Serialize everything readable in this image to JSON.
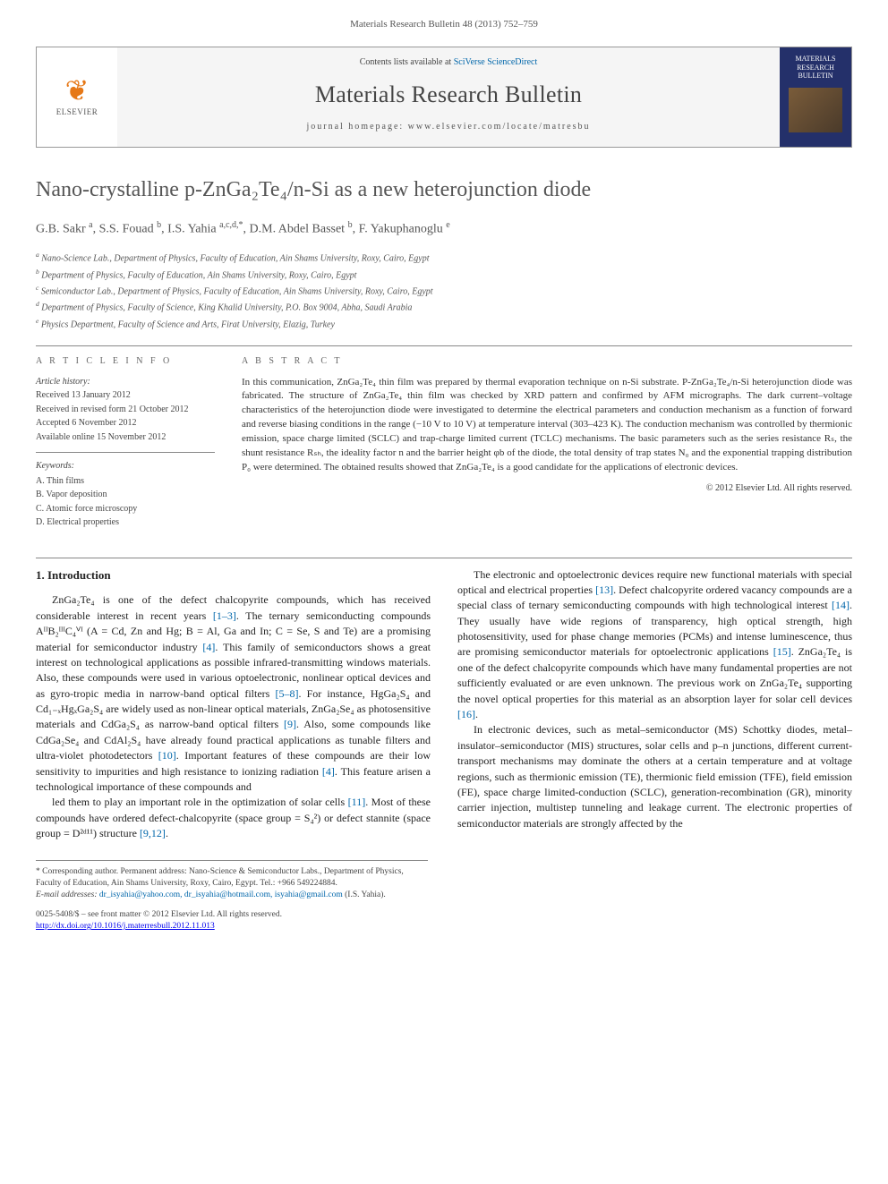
{
  "page_header": "Materials Research Bulletin 48 (2013) 752–759",
  "banner": {
    "contents_line_pre": "Contents lists available at ",
    "contents_link": "SciVerse ScienceDirect",
    "journal_name": "Materials Research Bulletin",
    "homepage_label": "journal homepage: www.elsevier.com/locate/matresbu",
    "publisher": "ELSEVIER",
    "cover_title": "MATERIALS RESEARCH BULLETIN"
  },
  "title": "Nano-crystalline p-ZnGa₂Te₄/n-Si as a new heterojunction diode",
  "authors_html": "G.B. Sakr <sup>a</sup>, S.S. Fouad <sup>b</sup>, I.S. Yahia <sup>a,c,d,*</sup>, D.M. Abdel Basset <sup>b</sup>, F. Yakuphanoglu <sup>e</sup>",
  "affiliations": [
    "a Nano-Science Lab., Department of Physics, Faculty of Education, Ain Shams University, Roxy, Cairo, Egypt",
    "b Department of Physics, Faculty of Education, Ain Shams University, Roxy, Cairo, Egypt",
    "c Semiconductor Lab., Department of Physics, Faculty of Education, Ain Shams University, Roxy, Cairo, Egypt",
    "d Department of Physics, Faculty of Science, King Khalid University, P.O. Box 9004, Abha, Saudi Arabia",
    "e Physics Department, Faculty of Science and Arts, Firat University, Elazig, Turkey"
  ],
  "article_info": {
    "heading": "A R T I C L E   I N F O",
    "history_hd": "Article history:",
    "history": [
      "Received 13 January 2012",
      "Received in revised form 21 October 2012",
      "Accepted 6 November 2012",
      "Available online 15 November 2012"
    ],
    "keywords_hd": "Keywords:",
    "keywords": [
      "A. Thin films",
      "B. Vapor deposition",
      "C. Atomic force microscopy",
      "D. Electrical properties"
    ]
  },
  "abstract": {
    "heading": "A B S T R A C T",
    "body": "In this communication, ZnGa₂Te₄ thin film was prepared by thermal evaporation technique on n-Si substrate. P-ZnGa₂Te₄/n-Si heterojunction diode was fabricated. The structure of ZnGa₂Te₄ thin film was checked by XRD pattern and confirmed by AFM micrographs. The dark current–voltage characteristics of the heterojunction diode were investigated to determine the electrical parameters and conduction mechanism as a function of forward and reverse biasing conditions in the range (−10 V to 10 V) at temperature interval (303–423 K). The conduction mechanism was controlled by thermionic emission, space charge limited (SCLC) and trap-charge limited current (TCLC) mechanisms. The basic parameters such as the series resistance Rₛ, the shunt resistance Rₛₕ, the ideality factor n and the barrier height φb of the diode, the total density of trap states N₀ and the exponential trapping distribution P₀ were determined. The obtained results showed that ZnGa₂Te₄ is a good candidate for the applications of electronic devices.",
    "copyright": "© 2012 Elsevier Ltd. All rights reserved."
  },
  "section1": {
    "heading": "1. Introduction",
    "p1": "ZnGa₂Te₄ is one of the defect chalcopyrite compounds, which has received considerable interest in recent years [1–3]. The ternary semiconducting compounds AᴵᴵB₂ᴵᴵᴵC₄ⱽᴵ (A = Cd, Zn and Hg; B = Al, Ga and In; C = Se, S and Te) are a promising material for semiconductor industry [4]. This family of semiconductors shows a great interest on technological applications as possible infrared-transmitting windows materials. Also, these compounds were used in various optoelectronic, nonlinear optical devices and as gyro-tropic media in narrow-band optical filters [5–8]. For instance, HgGa₂S₄ and Cd₁₋ₓHgₓGa₂S₄ are widely used as non-linear optical materials, ZnGa₂Se₄ as photosensitive materials and CdGa₂S₄ as narrow-band optical filters [9]. Also, some compounds like CdGa₂Se₄ and CdAl₂S₄ have already found practical applications as tunable filters and ultra-violet photodetectors [10]. Important features of these compounds are their low sensitivity to impurities and high resistance to ionizing radiation [4]. This feature arisen a technological importance of these compounds and",
    "p2": "led them to play an important role in the optimization of solar cells [11]. Most of these compounds have ordered defect-chalcopyrite (space group = S₄²) or defect stannite (space group = D²ᵈ¹¹) structure [9,12].",
    "p3": "The electronic and optoelectronic devices require new functional materials with special optical and electrical properties [13]. Defect chalcopyrite ordered vacancy compounds are a special class of ternary semiconducting compounds with high technological interest [14]. They usually have wide regions of transparency, high optical strength, high photosensitivity, used for phase change memories (PCMs) and intense luminescence, thus are promising semiconductor materials for optoelectronic applications [15]. ZnGa₂Te₄ is one of the defect chalcopyrite compounds which have many fundamental properties are not sufficiently evaluated or are even unknown. The previous work on ZnGa₂Te₄ supporting the novel optical properties for this material as an absorption layer for solar cell devices [16].",
    "p4": "In electronic devices, such as metal–semiconductor (MS) Schottky diodes, metal–insulator–semiconductor (MIS) structures, solar cells and p–n junctions, different current-transport mechanisms may dominate the others at a certain temperature and at voltage regions, such as thermionic emission (TE), thermionic field emission (TFE), field emission (FE), space charge limited-conduction (SCLC), generation-recombination (GR), minority carrier injection, multistep tunneling and leakage current. The electronic properties of semiconductor materials are strongly affected by the"
  },
  "footnote": {
    "corr": "* Corresponding author. Permanent address: Nano-Science & Semiconductor Labs., Department of Physics, Faculty of Education, Ain Shams University, Roxy, Cairo, Egypt. Tel.: +966 549224884.",
    "email_label": "E-mail addresses: ",
    "emails": "dr_isyahia@yahoo.com, dr_isyahia@hotmail.com, isyahia@gmail.com",
    "email_suffix": " (I.S. Yahia)."
  },
  "footer": {
    "left1": "0025-5408/$ – see front matter © 2012 Elsevier Ltd. All rights reserved.",
    "doi": "http://dx.doi.org/10.1016/j.materresbull.2012.11.013"
  },
  "colors": {
    "link": "#0066aa",
    "heading_grey": "#555",
    "elsevier_orange": "#e67817",
    "cover_blue": "#24306a"
  }
}
